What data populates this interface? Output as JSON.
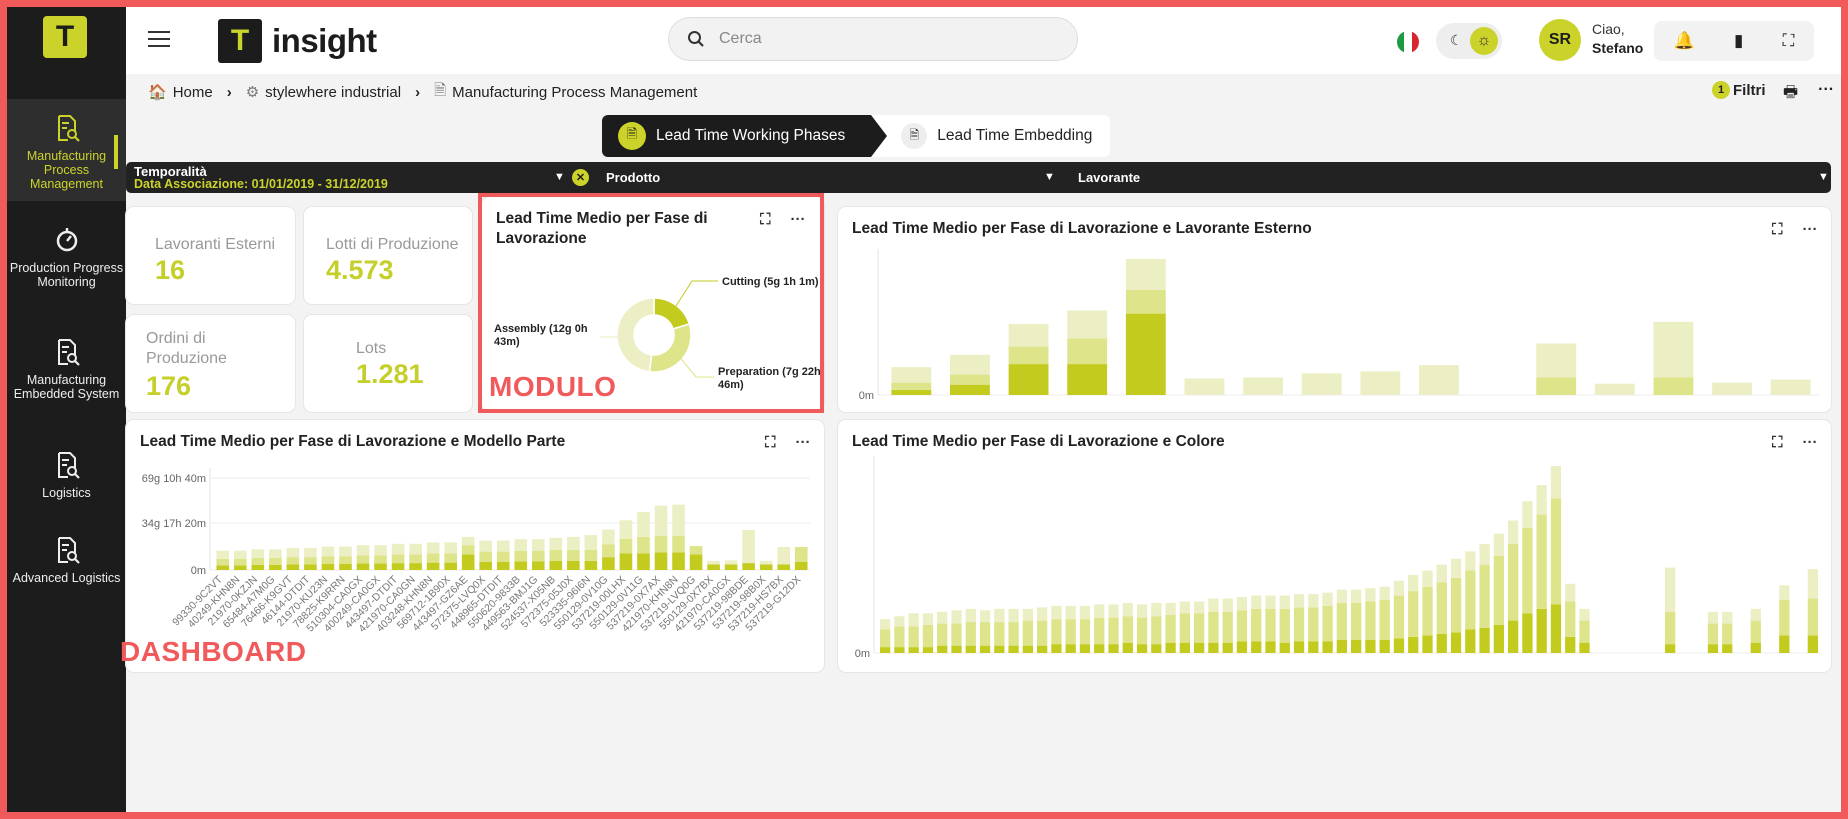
{
  "sidebar": {
    "logo": "T",
    "items": [
      {
        "label": "Manufacturing Process Management",
        "icon": "document-search-icon",
        "active": true
      },
      {
        "label": "Production Progress Monitoring",
        "icon": "timer-icon",
        "active": false
      },
      {
        "label": "Manufacturing Embedded System",
        "icon": "document-search-icon",
        "active": false
      },
      {
        "label": "Logistics",
        "icon": "document-search-icon",
        "active": false
      },
      {
        "label": "Advanced Logistics",
        "icon": "document-search-icon",
        "active": false
      }
    ]
  },
  "header": {
    "brand_mark": "T",
    "brand_name": "insight",
    "search_placeholder": "Cerca",
    "greeting": "Ciao,",
    "user_name": "Stefano",
    "user_initials": "SR"
  },
  "breadcrumb": {
    "home": "Home",
    "level1": "stylewhere industrial",
    "level2": "Manufacturing Process Management"
  },
  "filters_button": {
    "count": "1",
    "label": "Filtri"
  },
  "tabs": [
    {
      "label": "Lead Time Working Phases",
      "active": true
    },
    {
      "label": "Lead Time Embedding",
      "active": false
    }
  ],
  "filterbar": {
    "temporalita_label": "Temporalità",
    "temporalita_value": "Data Associazione: 01/01/2019 - 31/12/2019",
    "prodotto_label": "Prodotto",
    "lavorante_label": "Lavorante"
  },
  "kpis": [
    {
      "label": "Lavoranti Esterni",
      "value": "16"
    },
    {
      "label": "Lotti di Produzione",
      "value": "4.573"
    },
    {
      "label": "Ordini di Produzione",
      "value": "176"
    },
    {
      "label": "Lots",
      "value": "1.281"
    }
  ],
  "annotations": {
    "modulo": "MODULO",
    "dashboard": "DASHBOARD"
  },
  "colors": {
    "accent": "#cbd32a",
    "dark": "#1c1c1c",
    "annotation": "#f05a5a",
    "series_dark": "#c4cb1f",
    "series_mid": "#dde48a",
    "series_light": "#ecefc4"
  },
  "chart_data": [
    {
      "type": "pie",
      "title": "Lead Time Medio per Fase di Lavorazione",
      "donut": true,
      "slices": [
        {
          "label": "Cutting (5g 1h 1m)",
          "value": 7261
        },
        {
          "label": "Preparation (7g 22h 46m)",
          "value": 11446
        },
        {
          "label": "Assembly (12g 0h 43m)",
          "value": 17323
        }
      ]
    },
    {
      "type": "bar",
      "stacked": true,
      "title": "Lead Time Medio per Fase di Lavorazione e Lavorante Esterno",
      "y_ticks": [
        "0m"
      ],
      "series": [
        {
          "name": "Cutting",
          "values": [
            5,
            10,
            30,
            30,
            79,
            0,
            0,
            0,
            0,
            0,
            0,
            0,
            0,
            0,
            0,
            0
          ]
        },
        {
          "name": "Preparation",
          "values": [
            7,
            10,
            17,
            25,
            23,
            0,
            0,
            0,
            0,
            0,
            0,
            17,
            0,
            17,
            0,
            0
          ]
        },
        {
          "name": "Assembly",
          "values": [
            15,
            19,
            22,
            27,
            30,
            16,
            17,
            21,
            23,
            29,
            0,
            33,
            11,
            54,
            12,
            15
          ]
        }
      ]
    },
    {
      "type": "bar",
      "stacked": true,
      "title": "Lead Time Medio per Fase di Lavorazione e Modello Parte",
      "y_ticks": [
        "0m",
        "34g 17h 20m",
        "69g 10h 40m"
      ],
      "ylim": [
        0,
        100000
      ],
      "categories": [
        "99330-9C2VT",
        "40249-KHN8N",
        "21970-0KZJN",
        "65484-A7M0G",
        "76466-K9GVT",
        "46144-DTDIT",
        "21970-KU23N",
        "78825-K9RRN",
        "510304-CA0GX",
        "400249-CA0GX",
        "443497-DTDIT",
        "421970-CA0GN",
        "403248-KHN8N",
        "569712-1B90X",
        "443497-GZ6AE",
        "572375-LVQ0X",
        "448965-DTDIT",
        "550620-9833B",
        "449563-BMJ1G",
        "524537-X05NB",
        "572375-05J0X",
        "523335-96I6N",
        "550129-0V10G",
        "537219-00LHX",
        "550129-0V11G",
        "537219-0X7AX",
        "421970-KHN8N",
        "537219-LVQ0G",
        "550129-0X7BX",
        "421970-CA0GX",
        "537219-98BDE",
        "537219-98B0X",
        "537219-HS7BX",
        "537219-G12DX"
      ],
      "series": [
        {
          "name": "Cutting",
          "values": [
            5000,
            5000,
            5500,
            5500,
            6000,
            6000,
            6500,
            6500,
            7000,
            7000,
            7500,
            7500,
            8000,
            8000,
            17000,
            9000,
            9000,
            9500,
            9500,
            10000,
            10000,
            10000,
            14000,
            18000,
            18000,
            19000,
            19000,
            17000,
            6000,
            6000,
            7500,
            6000,
            6000,
            9000
          ]
        },
        {
          "name": "Preparation",
          "values": [
            7000,
            7000,
            7500,
            7500,
            8000,
            8000,
            8500,
            8500,
            9000,
            9000,
            9500,
            9500,
            10000,
            10000,
            10000,
            11000,
            11000,
            11500,
            11500,
            12000,
            12000,
            12000,
            14000,
            16000,
            18000,
            18000,
            18000,
            9000,
            0,
            0,
            0,
            0,
            0,
            16000
          ]
        },
        {
          "name": "Assembly",
          "values": [
            9000,
            9000,
            9500,
            9500,
            10000,
            10000,
            10500,
            10500,
            11000,
            11000,
            11500,
            11500,
            12000,
            12000,
            9000,
            12000,
            12000,
            12500,
            12500,
            13000,
            14000,
            16000,
            16000,
            20000,
            27000,
            33000,
            34000,
            0,
            4000,
            4500,
            36000,
            4000,
            19000,
            0
          ]
        }
      ]
    },
    {
      "type": "bar",
      "stacked": true,
      "title": "Lead Time Medio per Fase di Lavorazione e Colore",
      "y_ticks": [
        "0m"
      ],
      "series": [
        {
          "name": "Cutting",
          "values": [
            4,
            4,
            4,
            4,
            5,
            5,
            5,
            5,
            5,
            5,
            5,
            5,
            6,
            6,
            6,
            6,
            6,
            7,
            6,
            6,
            7,
            7,
            7,
            7,
            7,
            8,
            8,
            8,
            7,
            8,
            8,
            8,
            9,
            9,
            9,
            9,
            10,
            11,
            12,
            13,
            14,
            16,
            17,
            19,
            22,
            27,
            30,
            33,
            11,
            7,
            0,
            0,
            0,
            0,
            0,
            6,
            0,
            0,
            6,
            6,
            0,
            7,
            0,
            12,
            0,
            12
          ]
        },
        {
          "name": "Preparation",
          "values": [
            12,
            14,
            14,
            15,
            15,
            15,
            16,
            16,
            16,
            16,
            17,
            17,
            17,
            17,
            17,
            18,
            18,
            18,
            18,
            19,
            19,
            20,
            20,
            21,
            21,
            21,
            22,
            22,
            23,
            23,
            23,
            24,
            25,
            25,
            26,
            27,
            29,
            31,
            33,
            35,
            37,
            40,
            43,
            47,
            52,
            58,
            64,
            72,
            24,
            15,
            0,
            0,
            0,
            0,
            0,
            22,
            0,
            0,
            14,
            14,
            0,
            15,
            0,
            24,
            0,
            25
          ]
        },
        {
          "name": "Assembly",
          "values": [
            7,
            7,
            9,
            8,
            8,
            9,
            9,
            8,
            9,
            9,
            8,
            9,
            9,
            9,
            9,
            9,
            9,
            9,
            9,
            9,
            8,
            8,
            8,
            9,
            9,
            9,
            9,
            9,
            9,
            9,
            9,
            9,
            9,
            9,
            9,
            9,
            10,
            11,
            11,
            12,
            13,
            13,
            14,
            15,
            16,
            18,
            20,
            22,
            12,
            8,
            0,
            0,
            0,
            0,
            0,
            30,
            0,
            0,
            8,
            8,
            0,
            8,
            0,
            10,
            0,
            20
          ]
        }
      ]
    }
  ]
}
